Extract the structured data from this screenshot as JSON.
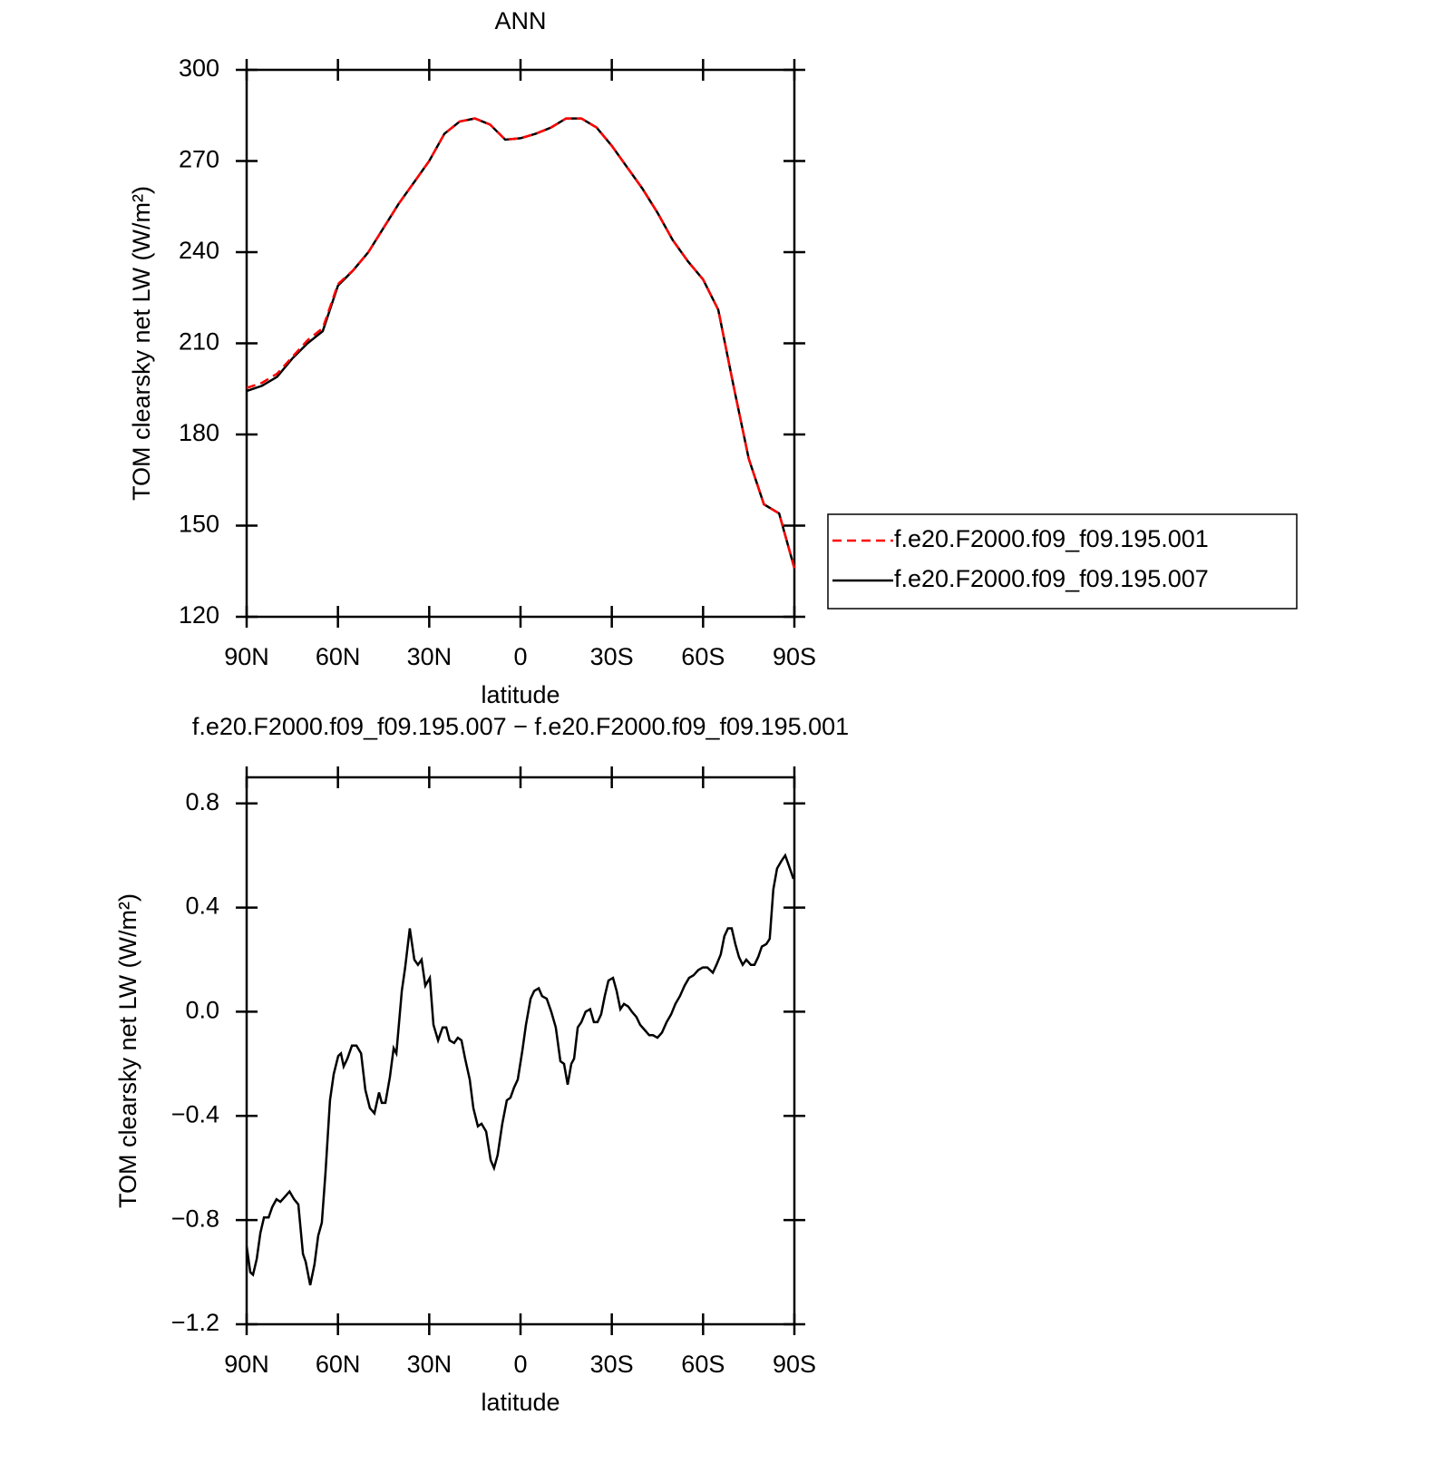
{
  "chart_data": [
    {
      "type": "line",
      "title": "ANN",
      "xlabel": "latitude",
      "ylabel": "TOM clearsky net LW (W/m²)",
      "x": [
        90,
        85,
        80,
        75,
        70,
        65,
        60,
        55,
        50,
        45,
        40,
        35,
        30,
        25,
        20,
        15,
        10,
        5,
        0,
        -5,
        -10,
        -15,
        -20,
        -25,
        -30,
        -35,
        -40,
        -45,
        -50,
        -55,
        -60,
        -65,
        -70,
        -75,
        -80,
        -85,
        -90
      ],
      "series": [
        {
          "name": "f.e20.F2000.f09_f09.195.001",
          "color": "#ff0000",
          "line_style": "dashed",
          "values": [
            195.3,
            197,
            200,
            205.5,
            211,
            215,
            229.5,
            234,
            240,
            248,
            256,
            263,
            270,
            279,
            283,
            284,
            282,
            277,
            277.5,
            279,
            281,
            284,
            284,
            281,
            275,
            268,
            261,
            253,
            244,
            237,
            231,
            221,
            196,
            172,
            157,
            154,
            136
          ]
        },
        {
          "name": "f.e20.F2000.f09_f09.195.007",
          "color": "#000000",
          "line_style": "solid",
          "values": [
            194.3,
            196,
            199,
            205,
            210,
            214,
            229,
            234,
            240,
            248,
            256,
            263,
            270,
            279,
            283,
            284,
            282,
            277,
            277.5,
            279,
            281,
            284,
            284,
            281,
            275,
            268,
            261,
            253,
            244,
            237,
            231,
            221,
            196,
            172,
            157,
            154,
            136
          ]
        }
      ],
      "xlim": [
        90,
        -90
      ],
      "xticks": [
        {
          "value": 90,
          "label": "90N"
        },
        {
          "value": 60,
          "label": "60N"
        },
        {
          "value": 30,
          "label": "30N"
        },
        0,
        {
          "value": -30,
          "label": "30S"
        },
        {
          "value": -60,
          "label": "60S"
        },
        {
          "value": -90,
          "label": "90S"
        }
      ],
      "ylim": [
        120,
        300
      ],
      "yticks": [
        120,
        150,
        180,
        210,
        240,
        270,
        300
      ],
      "legend": "right"
    },
    {
      "type": "line",
      "title": "f.e20.F2000.f09_f09.195.007 − f.e20.F2000.f09_f09.195.001",
      "xlabel": "latitude",
      "ylabel": "TOM clearsky net LW (W/m²)",
      "color": "#000000",
      "x": [
        90,
        88.8,
        87.9,
        86.7,
        85.5,
        84.3,
        82.8,
        81.6,
        80.2,
        78.9,
        77.4,
        75.9,
        74.4,
        73.0,
        71.5,
        70.6,
        69.1,
        67.7,
        66.5,
        65.3,
        64.1,
        62.6,
        61.4,
        59.9,
        59.0,
        58.1,
        56.9,
        55.4,
        53.9,
        52.4,
        51.0,
        49.5,
        48.0,
        46.5,
        45.6,
        44.4,
        42.9,
        41.7,
        40.8,
        39.0,
        37.9,
        36.4,
        34.9,
        33.7,
        32.5,
        31.3,
        29.8,
        28.6,
        27.1,
        25.6,
        24.4,
        23.3,
        21.8,
        20.6,
        19.4,
        18.2,
        16.7,
        15.5,
        14.0,
        12.8,
        11.3,
        9.8,
        8.7,
        7.5,
        6.0,
        4.5,
        3.3,
        2.1,
        0.9,
        -0.6,
        -1.8,
        -3.3,
        -4.5,
        -6.0,
        -7.1,
        -8.6,
        -10.1,
        -11.6,
        -13.1,
        -14.3,
        -15.5,
        -16.7,
        -17.6,
        -18.8,
        -20.0,
        -21.4,
        -22.9,
        -24.1,
        -25.3,
        -26.5,
        -27.7,
        -28.9,
        -30.4,
        -31.6,
        -32.8,
        -34.0,
        -35.4,
        -36.6,
        -38.1,
        -39.3,
        -40.8,
        -42.3,
        -43.5,
        -45.0,
        -46.5,
        -48.0,
        -49.5,
        -50.9,
        -52.4,
        -53.9,
        -55.4,
        -56.9,
        -58.4,
        -59.9,
        -61.4,
        -63.2,
        -64.4,
        -65.8,
        -67.0,
        -68.2,
        -69.4,
        -70.6,
        -71.8,
        -73.0,
        -74.2,
        -75.7,
        -76.9,
        -78.1,
        -79.3,
        -80.8,
        -81.9,
        -83.1,
        -84.3,
        -85.8,
        -87.0,
        -88.2,
        -89.7
      ],
      "values": [
        -0.9,
        -1.0,
        -1.01,
        -0.95,
        -0.85,
        -0.79,
        -0.79,
        -0.75,
        -0.72,
        -0.73,
        -0.71,
        -0.69,
        -0.72,
        -0.74,
        -0.93,
        -0.96,
        -1.05,
        -0.97,
        -0.86,
        -0.81,
        -0.62,
        -0.34,
        -0.24,
        -0.17,
        -0.16,
        -0.21,
        -0.18,
        -0.13,
        -0.13,
        -0.16,
        -0.3,
        -0.37,
        -0.39,
        -0.31,
        -0.35,
        -0.35,
        -0.25,
        -0.14,
        -0.16,
        0.08,
        0.17,
        0.32,
        0.2,
        0.18,
        0.2,
        0.1,
        0.13,
        -0.05,
        -0.11,
        -0.06,
        -0.06,
        -0.11,
        -0.12,
        -0.1,
        -0.11,
        -0.18,
        -0.26,
        -0.37,
        -0.44,
        -0.43,
        -0.46,
        -0.57,
        -0.6,
        -0.55,
        -0.43,
        -0.34,
        -0.33,
        -0.29,
        -0.26,
        -0.15,
        -0.05,
        0.05,
        0.08,
        0.09,
        0.06,
        0.05,
        0.0,
        -0.06,
        -0.19,
        -0.2,
        -0.28,
        -0.2,
        -0.18,
        -0.06,
        -0.04,
        0.0,
        0.01,
        -0.04,
        -0.04,
        -0.01,
        0.06,
        0.12,
        0.13,
        0.08,
        0.01,
        0.03,
        0.02,
        0.0,
        -0.02,
        -0.05,
        -0.07,
        -0.09,
        -0.09,
        -0.1,
        -0.08,
        -0.04,
        -0.01,
        0.03,
        0.06,
        0.1,
        0.13,
        0.14,
        0.16,
        0.17,
        0.17,
        0.15,
        0.18,
        0.22,
        0.29,
        0.32,
        0.32,
        0.26,
        0.21,
        0.18,
        0.2,
        0.18,
        0.18,
        0.21,
        0.25,
        0.26,
        0.28,
        0.47,
        0.55,
        0.58,
        0.6,
        0.56,
        0.51
      ],
      "xlim": [
        90,
        -90
      ],
      "xticks": [
        {
          "value": 90,
          "label": "90N"
        },
        {
          "value": 60,
          "label": "60N"
        },
        {
          "value": 30,
          "label": "30N"
        },
        0,
        {
          "value": -30,
          "label": "30S"
        },
        {
          "value": -60,
          "label": "60S"
        },
        {
          "value": -90,
          "label": "90S"
        }
      ],
      "ylim": [
        -1.2,
        0.9
      ],
      "yticks": [
        {
          "value": -1.2,
          "label": "−1.2"
        },
        {
          "value": -0.8,
          "label": "−0.8"
        },
        {
          "value": -0.4,
          "label": "−0.4"
        },
        {
          "value": 0,
          "label": "0.0"
        },
        0.4,
        0.8
      ]
    }
  ]
}
